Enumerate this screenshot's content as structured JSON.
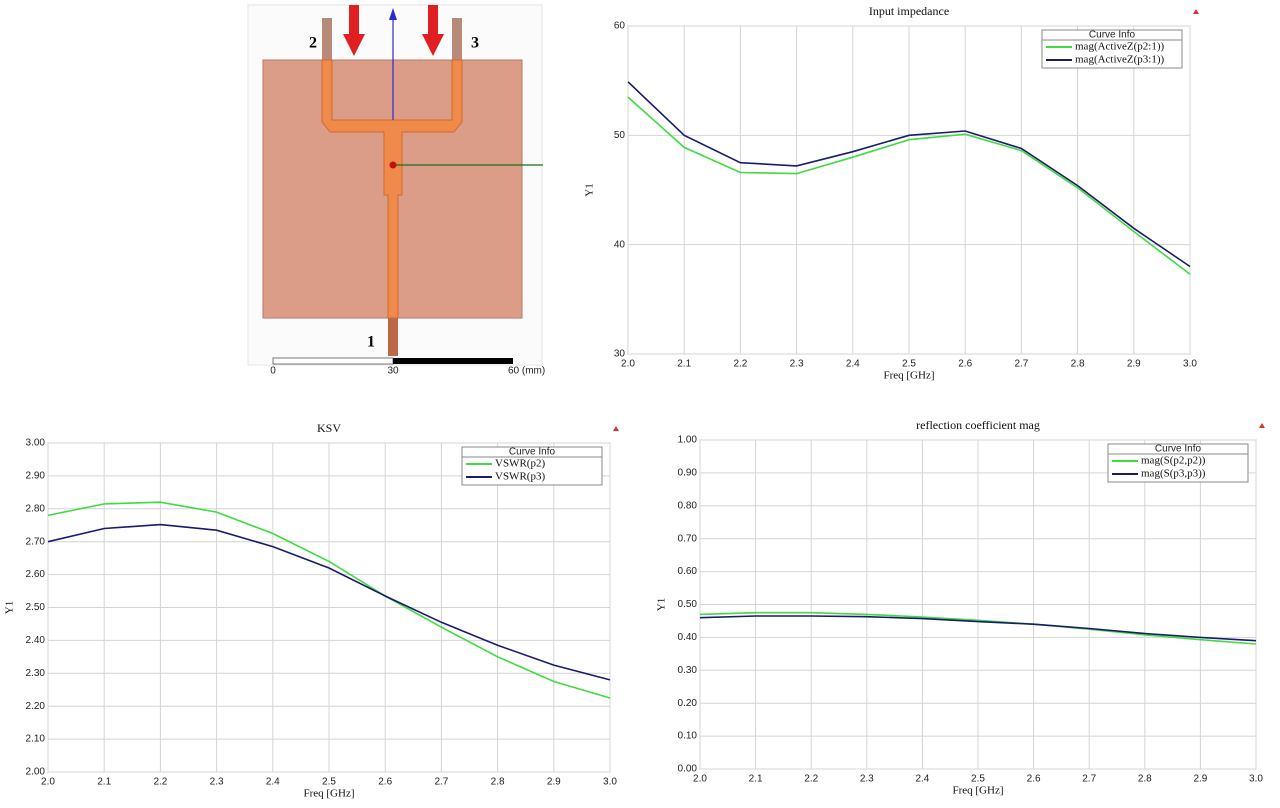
{
  "diagram": {
    "port_labels": [
      "2",
      "3",
      "1"
    ],
    "scale_labels": [
      "0",
      "30",
      "60 (mm)"
    ]
  },
  "chart_data": [
    {
      "type": "line",
      "title": "Input impedance",
      "x_label": "Freq [GHz]",
      "y_label": "Y1",
      "legend_title": "Curve Info",
      "legend": "upper right",
      "grid": true,
      "x": [
        2.0,
        2.1,
        2.2,
        2.3,
        2.4,
        2.5,
        2.6,
        2.7,
        2.8,
        2.9,
        3.0
      ],
      "xlim": [
        2,
        3
      ],
      "xticks": [
        {
          "value": 2,
          "label": "2.0"
        },
        {
          "value": 2.1,
          "label": "2.1"
        },
        {
          "value": 2.2,
          "label": "2.2"
        },
        {
          "value": 2.3,
          "label": "2.3"
        },
        {
          "value": 2.4,
          "label": "2.4"
        },
        {
          "value": 2.5,
          "label": "2.5"
        },
        {
          "value": 2.6,
          "label": "2.6"
        },
        {
          "value": 2.7,
          "label": "2.7"
        },
        {
          "value": 2.8,
          "label": "2.8"
        },
        {
          "value": 2.9,
          "label": "2.9"
        },
        {
          "value": 3,
          "label": "3.0"
        }
      ],
      "ylim": [
        30,
        60
      ],
      "yticks": [
        30,
        40,
        50,
        60
      ],
      "series": [
        {
          "name": "mag(ActiveZ(p2:1))",
          "color": "#3fdc3f",
          "values": [
            53.5,
            48.9,
            46.6,
            46.5,
            48.0,
            49.6,
            50.1,
            48.6,
            45.2,
            41.2,
            37.3
          ]
        },
        {
          "name": "mag(ActiveZ(p3:1))",
          "color": "#1a1a6e",
          "values": [
            54.9,
            50.0,
            47.5,
            47.2,
            48.5,
            50.0,
            50.4,
            48.8,
            45.4,
            41.5,
            38.0
          ]
        }
      ]
    },
    {
      "type": "line",
      "title": "KSV",
      "x_label": "Freq [GHz]",
      "y_label": "Y1",
      "legend_title": "Curve Info",
      "legend": "upper right",
      "grid": true,
      "x": [
        2.0,
        2.1,
        2.2,
        2.3,
        2.4,
        2.5,
        2.6,
        2.7,
        2.8,
        2.9,
        3.0
      ],
      "xlim": [
        2,
        3
      ],
      "xticks": [
        {
          "value": 2,
          "label": "2.0"
        },
        {
          "value": 2.1,
          "label": "2.1"
        },
        {
          "value": 2.2,
          "label": "2.2"
        },
        {
          "value": 2.3,
          "label": "2.3"
        },
        {
          "value": 2.4,
          "label": "2.4"
        },
        {
          "value": 2.5,
          "label": "2.5"
        },
        {
          "value": 2.6,
          "label": "2.6"
        },
        {
          "value": 2.7,
          "label": "2.7"
        },
        {
          "value": 2.8,
          "label": "2.8"
        },
        {
          "value": 2.9,
          "label": "2.9"
        },
        {
          "value": 3,
          "label": "3.0"
        }
      ],
      "ylim": [
        2,
        3
      ],
      "yticks": [
        {
          "value": 2,
          "label": "2.00"
        },
        {
          "value": 2.1,
          "label": "2.10"
        },
        {
          "value": 2.2,
          "label": "2.20"
        },
        {
          "value": 2.3,
          "label": "2.30"
        },
        {
          "value": 2.4,
          "label": "2.40"
        },
        {
          "value": 2.5,
          "label": "2.50"
        },
        {
          "value": 2.6,
          "label": "2.60"
        },
        {
          "value": 2.7,
          "label": "2.70"
        },
        {
          "value": 2.8,
          "label": "2.80"
        },
        {
          "value": 2.9,
          "label": "2.90"
        },
        {
          "value": 3,
          "label": "3.00"
        }
      ],
      "series": [
        {
          "name": "VSWR(p2)",
          "color": "#3fdc3f",
          "values": [
            2.78,
            2.815,
            2.82,
            2.79,
            2.725,
            2.64,
            2.535,
            2.44,
            2.35,
            2.275,
            2.225
          ]
        },
        {
          "name": "VSWR(p3)",
          "color": "#1a1a6e",
          "values": [
            2.7,
            2.74,
            2.752,
            2.735,
            2.685,
            2.62,
            2.535,
            2.455,
            2.385,
            2.325,
            2.28
          ]
        }
      ]
    },
    {
      "type": "line",
      "title": "reflection coefficient mag",
      "x_label": "Freq [GHz]",
      "y_label": "Y1",
      "legend_title": "Curve Info",
      "legend": "upper right",
      "grid": true,
      "x": [
        2.0,
        2.1,
        2.2,
        2.3,
        2.4,
        2.5,
        2.6,
        2.7,
        2.8,
        2.9,
        3.0
      ],
      "xlim": [
        2,
        3
      ],
      "xticks": [
        {
          "value": 2,
          "label": "2.0"
        },
        {
          "value": 2.1,
          "label": "2.1"
        },
        {
          "value": 2.2,
          "label": "2.2"
        },
        {
          "value": 2.3,
          "label": "2.3"
        },
        {
          "value": 2.4,
          "label": "2.4"
        },
        {
          "value": 2.5,
          "label": "2.5"
        },
        {
          "value": 2.6,
          "label": "2.6"
        },
        {
          "value": 2.7,
          "label": "2.7"
        },
        {
          "value": 2.8,
          "label": "2.8"
        },
        {
          "value": 2.9,
          "label": "2.9"
        },
        {
          "value": 3,
          "label": "3.0"
        }
      ],
      "ylim": [
        0,
        1
      ],
      "yticks": [
        {
          "value": 0,
          "label": "0.00"
        },
        {
          "value": 0.1,
          "label": "0.10"
        },
        {
          "value": 0.2,
          "label": "0.20"
        },
        {
          "value": 0.3,
          "label": "0.30"
        },
        {
          "value": 0.4,
          "label": "0.40"
        },
        {
          "value": 0.5,
          "label": "0.50"
        },
        {
          "value": 0.6,
          "label": "0.60"
        },
        {
          "value": 0.7,
          "label": "0.70"
        },
        {
          "value": 0.8,
          "label": "0.80"
        },
        {
          "value": 0.9,
          "label": "0.90"
        },
        {
          "value": 1,
          "label": "1.00"
        }
      ],
      "series": [
        {
          "name": "mag(S(p2,p2))",
          "color": "#3fdc3f",
          "values": [
            0.47,
            0.475,
            0.475,
            0.47,
            0.462,
            0.452,
            0.44,
            0.425,
            0.408,
            0.393,
            0.38
          ]
        },
        {
          "name": "mag(S(p3,p3))",
          "color": "#1a1a6e",
          "values": [
            0.46,
            0.465,
            0.465,
            0.463,
            0.457,
            0.448,
            0.44,
            0.427,
            0.412,
            0.4,
            0.39
          ]
        }
      ]
    }
  ]
}
